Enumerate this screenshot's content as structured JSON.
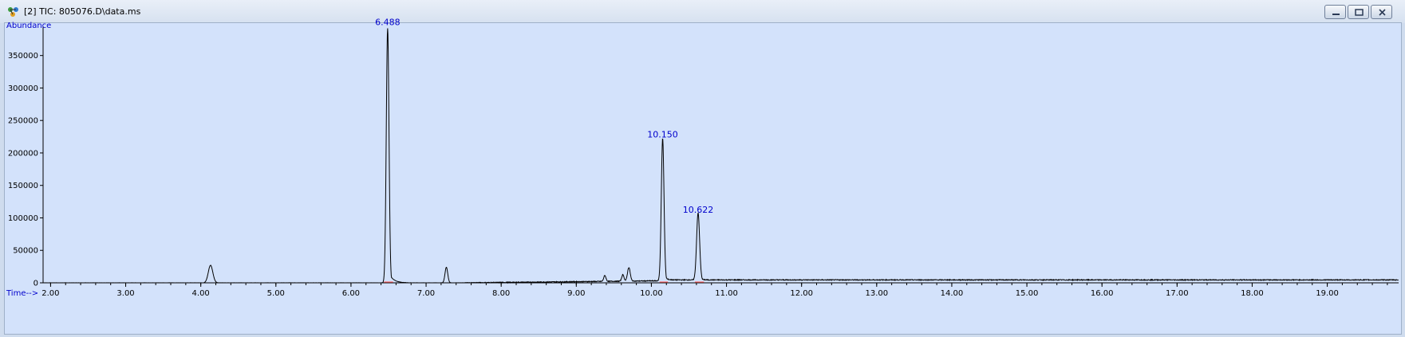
{
  "window": {
    "title": "[2] TIC: 805076.D\\data.ms",
    "app_icon": "molecule-icon",
    "buttons": [
      "minimize-icon",
      "restore-icon",
      "close-icon"
    ]
  },
  "chart_data": {
    "type": "line",
    "ylabel": "Abundance",
    "xlabel": "Time-->",
    "xlim": [
      1.9,
      19.95
    ],
    "ylim": [
      0,
      395000
    ],
    "x_ticks": [
      "2.00",
      "3.00",
      "4.00",
      "5.00",
      "6.00",
      "7.00",
      "8.00",
      "9.00",
      "10.00",
      "11.00",
      "12.00",
      "13.00",
      "14.00",
      "15.00",
      "16.00",
      "17.00",
      "18.00",
      "19.00"
    ],
    "y_ticks": [
      "0",
      "50000",
      "100000",
      "150000",
      "200000",
      "250000",
      "300000",
      "350000"
    ],
    "series": [
      {
        "color": "#000000",
        "peaks": [
          {
            "time": 4.13,
            "abundance": 27000,
            "width": 0.03
          },
          {
            "time": 6.488,
            "abundance": 392000,
            "width": 0.018,
            "tail": 0.06
          },
          {
            "time": 7.27,
            "abundance": 24000,
            "width": 0.018
          },
          {
            "time": 9.38,
            "abundance": 9000,
            "width": 0.015
          },
          {
            "time": 9.62,
            "abundance": 10000,
            "width": 0.015
          },
          {
            "time": 9.7,
            "abundance": 21000,
            "width": 0.018
          },
          {
            "time": 10.15,
            "abundance": 219000,
            "width": 0.018,
            "tail": 0.03
          },
          {
            "time": 10.622,
            "abundance": 103000,
            "width": 0.02,
            "tail": 0.03
          }
        ]
      }
    ],
    "annotations": [
      {
        "label": "6.488",
        "time": 6.488,
        "abundance": 392000
      },
      {
        "label": "10.150",
        "time": 10.15,
        "abundance": 219000
      },
      {
        "label": "10.622",
        "time": 10.622,
        "abundance": 103000
      }
    ],
    "integration_marks": [
      {
        "start": 6.44,
        "end": 6.56
      },
      {
        "start": 10.11,
        "end": 10.22
      },
      {
        "start": 10.58,
        "end": 10.7
      }
    ],
    "colors": {
      "plot_background": "#d3e2fb",
      "trace": "#000000",
      "label": "#0000cc",
      "integration_baseline": "#ff6666"
    }
  }
}
